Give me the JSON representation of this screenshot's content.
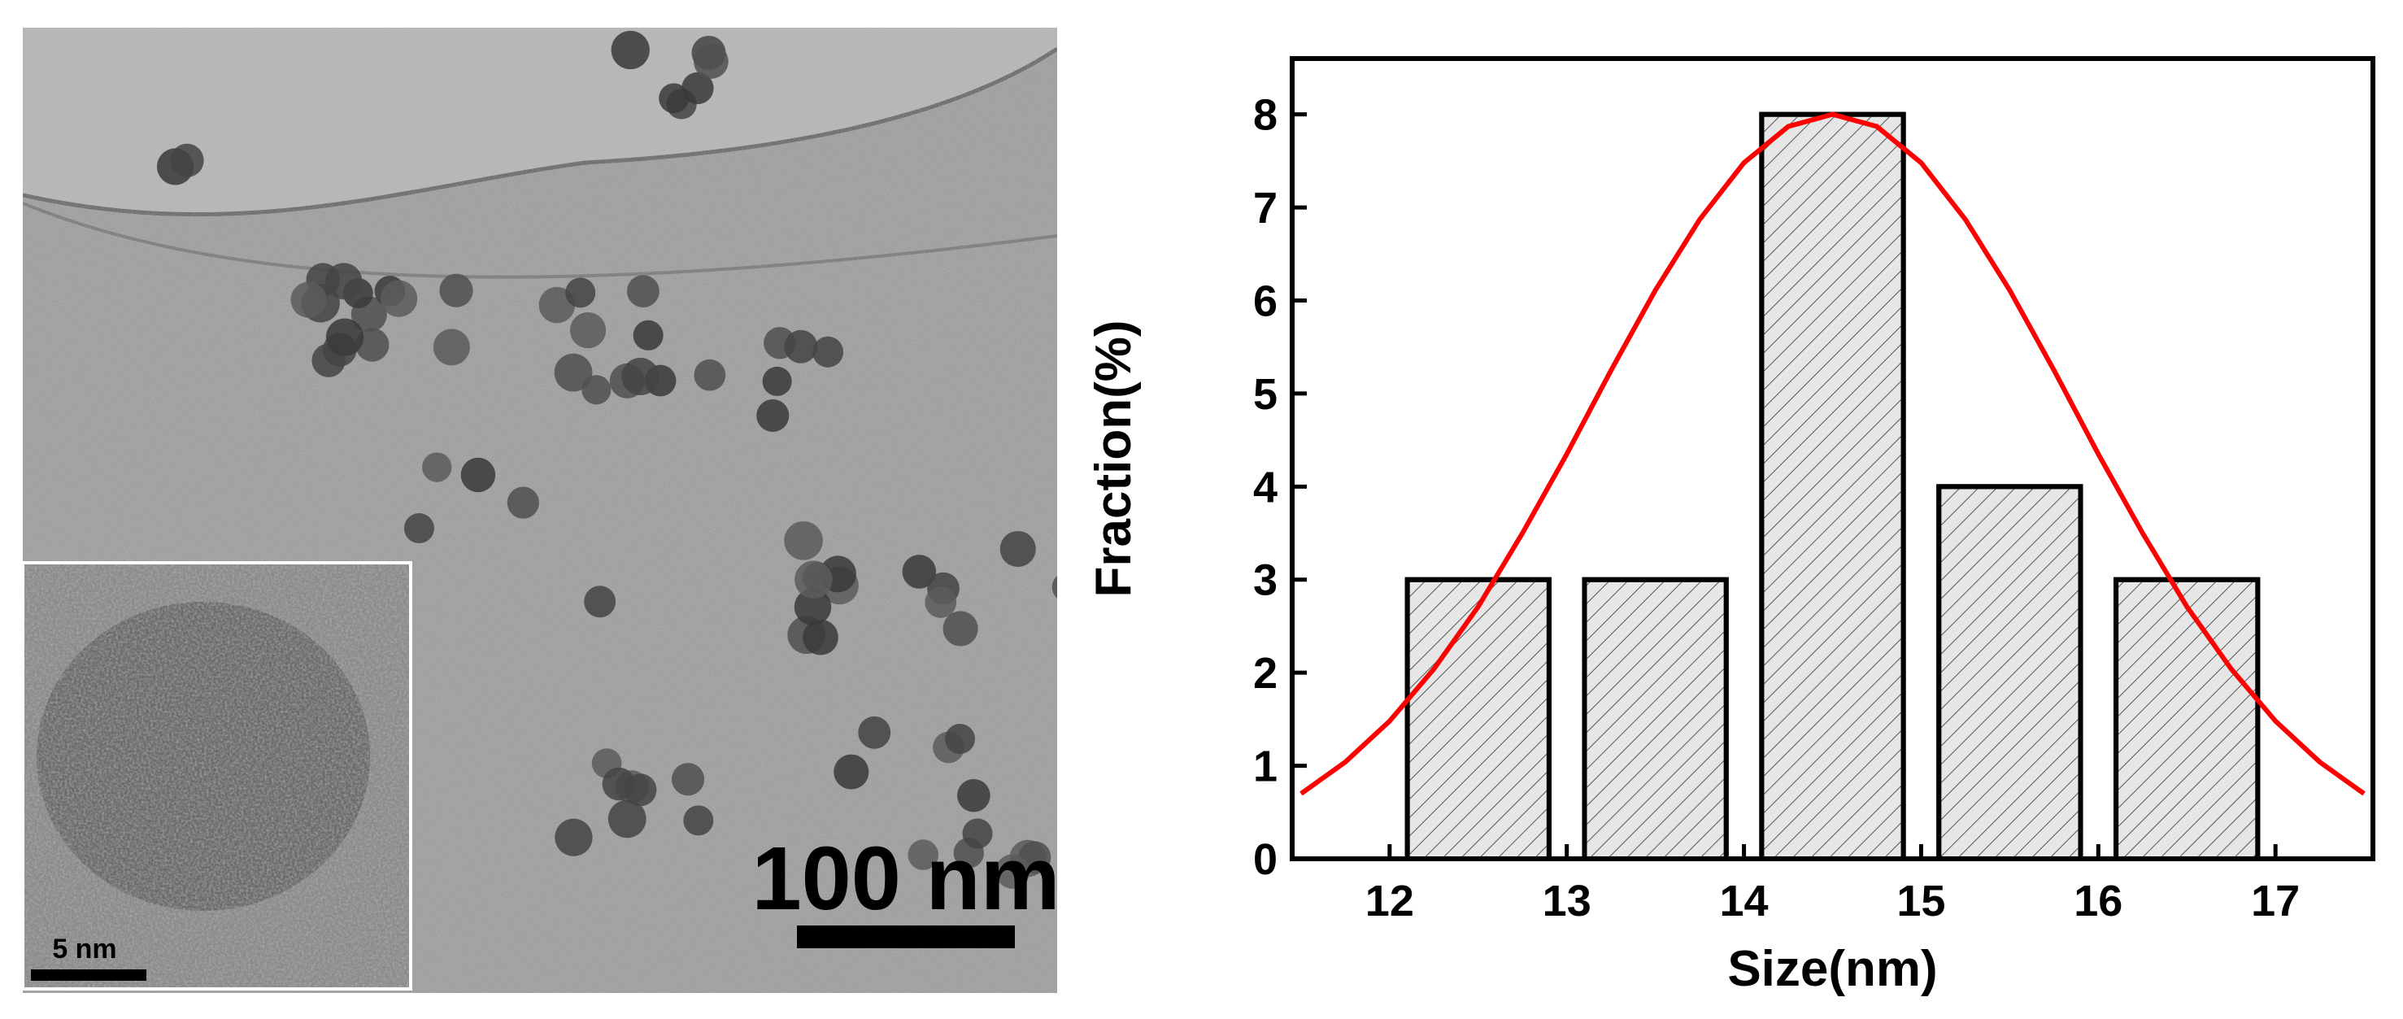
{
  "image": {
    "scale_bar_label": "100 nm",
    "inset_scale_bar_label": "5 nm"
  },
  "chart_data": {
    "type": "bar",
    "x": [
      12.5,
      13.5,
      14.5,
      15.5,
      16.5
    ],
    "values": [
      3,
      3,
      8,
      4,
      3
    ],
    "bar_width": 0.8,
    "color": "#e6e6e6",
    "hatch": true,
    "xlabel": "Size(nm)",
    "ylabel": "Fraction(%)",
    "xlim": [
      11.45,
      17.55
    ],
    "ylim": [
      0,
      8.6
    ],
    "xticks": [
      12,
      13,
      14,
      15,
      16,
      17
    ],
    "yticks": [
      0,
      1,
      2,
      3,
      4,
      5,
      6,
      7,
      8
    ],
    "fit": {
      "color": "#ff0000",
      "x": [
        11.5,
        11.75,
        12,
        12.25,
        12.5,
        12.75,
        13,
        13.25,
        13.5,
        13.75,
        14,
        14.25,
        14.5,
        14.75,
        15,
        15.25,
        15.5,
        15.75,
        16,
        16.25,
        16.5,
        16.75,
        17,
        17.25,
        17.5
      ],
      "values": [
        0.7,
        1.04,
        1.48,
        2.04,
        2.71,
        3.5,
        4.35,
        5.25,
        6.11,
        6.87,
        7.48,
        7.87,
        8,
        7.87,
        7.48,
        6.87,
        6.11,
        5.25,
        4.35,
        3.5,
        2.71,
        2.04,
        1.48,
        1.04,
        0.7
      ]
    }
  }
}
